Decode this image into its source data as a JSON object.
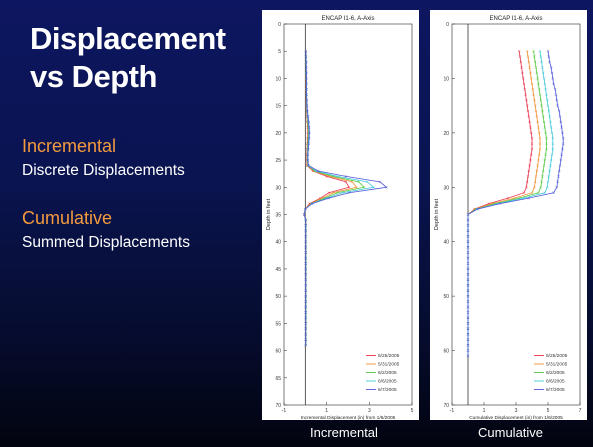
{
  "slide": {
    "title_line1": "Displacement",
    "title_line2": "vs Depth",
    "incremental_heading": "Incremental",
    "incremental_desc": "Discrete Displacements",
    "cumulative_heading": "Cumulative",
    "cumulative_desc": "Summed Displacements",
    "caption_incremental": "Incremental",
    "caption_cumulative": "Cumulative",
    "heading_color": "#f39a3e"
  },
  "chart_data": [
    {
      "type": "line",
      "title": "ENCAP I1-6, A-Axis",
      "xlabel": "Incremental Displacement (in) from 1/6/2005",
      "ylabel": "Depth in feet",
      "xlim": [
        -1,
        5
      ],
      "ylim": [
        0,
        70
      ],
      "y_inverted": true,
      "xticks": [
        -1,
        1,
        3,
        5
      ],
      "yticks": [
        0,
        5,
        10,
        15,
        20,
        25,
        30,
        35,
        40,
        45,
        50,
        55,
        60,
        65,
        70
      ],
      "legend_position": "bottom-right",
      "grid": false,
      "depth": [
        5,
        6,
        7,
        8,
        9,
        10,
        11,
        12,
        13,
        14,
        15,
        16,
        17,
        18,
        19,
        20,
        21,
        22,
        23,
        24,
        25,
        26,
        27,
        28,
        29,
        30,
        31,
        32,
        33,
        34,
        35,
        36,
        37,
        38,
        39,
        40,
        41,
        42,
        43,
        44,
        45,
        46,
        47,
        48,
        49,
        50,
        51,
        52,
        53,
        54,
        55,
        56,
        57,
        58,
        59
      ],
      "series": [
        {
          "name": "5/25/2005",
          "color": "#e8334a",
          "marker": "x",
          "x": [
            0.03,
            0.03,
            0.03,
            0.03,
            0.04,
            0.03,
            0.04,
            0.04,
            0.04,
            0.04,
            0.05,
            0.06,
            0.07,
            0.09,
            0.1,
            0.11,
            0.1,
            0.09,
            0.08,
            0.07,
            0.07,
            0.08,
            0.35,
            1.0,
            1.9,
            2.05,
            1.1,
            0.7,
            0.2,
            0.0,
            -0.03,
            0.02,
            0.02,
            0.02,
            0.02,
            0.02,
            0.02,
            0.02,
            0.02,
            0.02,
            0.02,
            0.02,
            0.02,
            0.02,
            0.02,
            0.02,
            0.02,
            0.02,
            0.02,
            0.02,
            0.02,
            0.02,
            0.02,
            0.02,
            0.02
          ]
        },
        {
          "name": "5/31/2005",
          "color": "#f09030",
          "marker": "x",
          "x": [
            0.02,
            0.03,
            0.03,
            0.04,
            0.04,
            0.04,
            0.04,
            0.04,
            0.05,
            0.05,
            0.06,
            0.07,
            0.09,
            0.11,
            0.12,
            0.13,
            0.12,
            0.11,
            0.1,
            0.09,
            0.09,
            0.1,
            0.4,
            1.15,
            2.2,
            2.4,
            1.3,
            0.8,
            0.25,
            0.0,
            -0.04,
            0.02,
            0.02,
            0.02,
            0.02,
            0.02,
            0.02,
            0.02,
            0.02,
            0.02,
            0.02,
            0.02,
            0.02,
            0.02,
            0.02,
            0.02,
            0.02,
            0.02,
            0.02,
            0.02,
            0.02,
            0.02,
            0.02,
            0.02,
            0.02
          ]
        },
        {
          "name": "6/2/2005",
          "color": "#55c840",
          "marker": "x",
          "x": [
            0.02,
            0.03,
            0.03,
            0.04,
            0.04,
            0.04,
            0.05,
            0.05,
            0.05,
            0.06,
            0.07,
            0.08,
            0.1,
            0.12,
            0.14,
            0.15,
            0.14,
            0.12,
            0.11,
            0.1,
            0.1,
            0.12,
            0.45,
            1.3,
            2.5,
            2.75,
            1.5,
            0.9,
            0.28,
            0.0,
            -0.05,
            0.02,
            0.02,
            0.02,
            0.02,
            0.02,
            0.02,
            0.02,
            0.02,
            0.02,
            0.02,
            0.02,
            0.02,
            0.02,
            0.02,
            0.02,
            0.02,
            0.02,
            0.02,
            0.02,
            0.02,
            0.02,
            0.02,
            0.02,
            0.02
          ]
        },
        {
          "name": "6/6/2005",
          "color": "#40c8d8",
          "marker": "x",
          "x": [
            0.02,
            0.03,
            0.04,
            0.04,
            0.04,
            0.05,
            0.05,
            0.05,
            0.06,
            0.06,
            0.07,
            0.09,
            0.11,
            0.14,
            0.16,
            0.17,
            0.16,
            0.14,
            0.12,
            0.11,
            0.11,
            0.13,
            0.5,
            1.5,
            2.9,
            3.2,
            1.75,
            1.0,
            0.3,
            0.0,
            -0.05,
            0.02,
            0.02,
            0.02,
            0.02,
            0.02,
            0.02,
            0.02,
            0.02,
            0.02,
            0.02,
            0.02,
            0.02,
            0.02,
            0.02,
            0.02,
            0.02,
            0.02,
            0.02,
            0.02,
            0.02,
            0.02,
            0.02,
            0.02,
            0.02
          ]
        },
        {
          "name": "6/7/2005",
          "color": "#5058d8",
          "marker": "x",
          "x": [
            0.02,
            0.03,
            0.04,
            0.04,
            0.05,
            0.05,
            0.05,
            0.06,
            0.06,
            0.07,
            0.08,
            0.1,
            0.13,
            0.16,
            0.18,
            0.19,
            0.18,
            0.16,
            0.14,
            0.12,
            0.12,
            0.15,
            0.6,
            1.9,
            3.5,
            3.8,
            2.05,
            1.1,
            0.32,
            0.0,
            -0.06,
            0.02,
            0.02,
            0.02,
            0.02,
            0.02,
            0.02,
            0.02,
            0.02,
            0.02,
            0.02,
            0.02,
            0.02,
            0.02,
            0.02,
            0.02,
            0.02,
            0.02,
            0.02,
            0.02,
            0.02,
            0.02,
            0.02,
            0.02,
            0.02
          ]
        }
      ]
    },
    {
      "type": "line",
      "title": "ENCAP I1-6, A-Axis",
      "xlabel": "Cumulative Displacement (in) from 1/6/2005",
      "ylabel": "Depth in feet",
      "xlim": [
        -1,
        7
      ],
      "ylim": [
        0,
        70
      ],
      "y_inverted": true,
      "xticks": [
        -1,
        1,
        3,
        5,
        7
      ],
      "yticks": [
        0,
        10,
        20,
        30,
        40,
        50,
        60,
        70
      ],
      "legend_position": "bottom-right",
      "grid": false,
      "depth": [
        5,
        6,
        7,
        8,
        9,
        10,
        11,
        12,
        13,
        14,
        15,
        16,
        17,
        18,
        19,
        20,
        21,
        22,
        23,
        24,
        25,
        26,
        27,
        28,
        29,
        30,
        31,
        32,
        33,
        34,
        35,
        36,
        37,
        38,
        39,
        40,
        41,
        42,
        43,
        44,
        45,
        46,
        47,
        48,
        49,
        50,
        51,
        52,
        53,
        54,
        55,
        56,
        57,
        58,
        59,
        60,
        61
      ],
      "series": [
        {
          "name": "5/25/2005",
          "color": "#e8334a",
          "marker": "x",
          "x": [
            3.2,
            3.25,
            3.3,
            3.35,
            3.4,
            3.45,
            3.5,
            3.55,
            3.6,
            3.65,
            3.7,
            3.75,
            3.8,
            3.85,
            3.9,
            3.95,
            4.0,
            4.0,
            4.0,
            3.95,
            3.9,
            3.85,
            3.8,
            3.75,
            3.7,
            3.65,
            3.5,
            2.5,
            1.3,
            0.4,
            0.0,
            0.0,
            0.0,
            0.0,
            0.0,
            0.0,
            0.0,
            0.0,
            0.0,
            0.0,
            0.0,
            0.0,
            0.0,
            0.0,
            0.0,
            0.0,
            0.0,
            0.0,
            0.0,
            0.0,
            0.0,
            0.0,
            0.0,
            0.0,
            0.0,
            0.0,
            0.0
          ]
        },
        {
          "name": "5/31/2005",
          "color": "#f09030",
          "marker": "x",
          "x": [
            3.7,
            3.75,
            3.8,
            3.85,
            3.9,
            3.95,
            4.0,
            4.05,
            4.1,
            4.15,
            4.2,
            4.25,
            4.3,
            4.35,
            4.4,
            4.45,
            4.5,
            4.5,
            4.5,
            4.45,
            4.4,
            4.35,
            4.3,
            4.25,
            4.2,
            4.15,
            4.0,
            2.9,
            1.5,
            0.45,
            0.0,
            0.0,
            0.0,
            0.0,
            0.0,
            0.0,
            0.0,
            0.0,
            0.0,
            0.0,
            0.0,
            0.0,
            0.0,
            0.0,
            0.0,
            0.0,
            0.0,
            0.0,
            0.0,
            0.0,
            0.0,
            0.0,
            0.0,
            0.0,
            0.0,
            0.0,
            0.0
          ]
        },
        {
          "name": "6/2/2005",
          "color": "#55c840",
          "marker": "x",
          "x": [
            4.1,
            4.15,
            4.2,
            4.25,
            4.3,
            4.35,
            4.4,
            4.45,
            4.5,
            4.55,
            4.6,
            4.65,
            4.7,
            4.75,
            4.8,
            4.85,
            4.9,
            4.9,
            4.9,
            4.85,
            4.8,
            4.75,
            4.7,
            4.65,
            4.6,
            4.55,
            4.4,
            3.2,
            1.7,
            0.5,
            0.0,
            0.0,
            0.0,
            0.0,
            0.0,
            0.0,
            0.0,
            0.0,
            0.0,
            0.0,
            0.0,
            0.0,
            0.0,
            0.0,
            0.0,
            0.0,
            0.0,
            0.0,
            0.0,
            0.0,
            0.0,
            0.0,
            0.0,
            0.0,
            0.0,
            0.0,
            0.0
          ]
        },
        {
          "name": "6/6/2005",
          "color": "#40c8d8",
          "marker": "x",
          "x": [
            4.5,
            4.55,
            4.6,
            4.65,
            4.7,
            4.75,
            4.8,
            4.85,
            4.9,
            4.95,
            5.0,
            5.05,
            5.1,
            5.15,
            5.2,
            5.25,
            5.3,
            5.3,
            5.3,
            5.25,
            5.2,
            5.15,
            5.1,
            5.05,
            5.0,
            4.95,
            4.8,
            3.5,
            1.85,
            0.55,
            0.0,
            0.0,
            0.0,
            0.0,
            0.0,
            0.0,
            0.0,
            0.0,
            0.0,
            0.0,
            0.0,
            0.0,
            0.0,
            0.0,
            0.0,
            0.0,
            0.0,
            0.0,
            0.0,
            0.0,
            0.0,
            0.0,
            0.0,
            0.0,
            0.0,
            0.0,
            0.0
          ]
        },
        {
          "name": "6/7/2005",
          "color": "#5058d8",
          "marker": "x",
          "x": [
            5.0,
            5.05,
            5.1,
            5.2,
            5.25,
            5.3,
            5.35,
            5.45,
            5.5,
            5.55,
            5.6,
            5.7,
            5.75,
            5.8,
            5.85,
            5.9,
            5.95,
            5.95,
            5.9,
            5.85,
            5.8,
            5.75,
            5.7,
            5.65,
            5.6,
            5.55,
            5.35,
            3.8,
            2.0,
            0.6,
            0.0,
            0.0,
            0.0,
            0.0,
            0.0,
            0.0,
            0.0,
            0.0,
            0.0,
            0.0,
            0.0,
            0.0,
            0.0,
            0.0,
            0.0,
            0.0,
            0.0,
            0.0,
            0.0,
            0.0,
            0.0,
            0.0,
            0.0,
            0.0,
            0.0,
            0.0,
            0.0
          ]
        }
      ]
    }
  ]
}
